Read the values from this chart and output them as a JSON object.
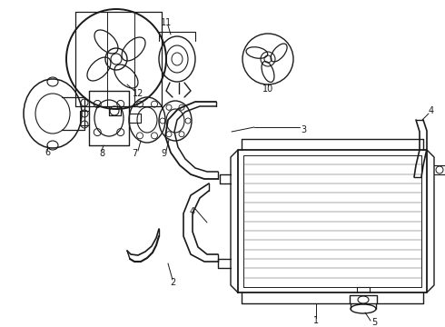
{
  "background_color": "#ffffff",
  "line_color": "#1a1a1a",
  "fig_width": 4.9,
  "fig_height": 3.6,
  "dpi": 100,
  "label_fontsize": 7.0
}
